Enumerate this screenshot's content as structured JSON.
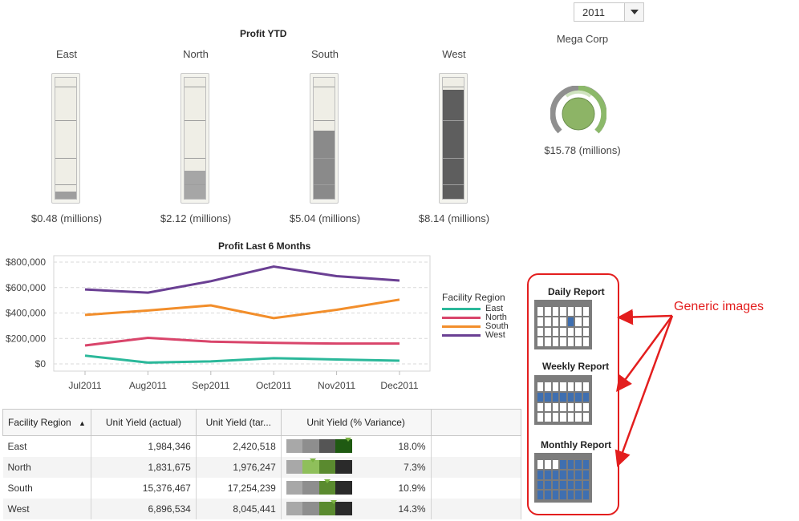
{
  "filter": {
    "year": "2011"
  },
  "profit_ytd": {
    "title": "Profit YTD",
    "regions": [
      {
        "name": "East",
        "value_label": "$0.48 (millions)",
        "fill_pct": 6,
        "color": "#9e9e9e"
      },
      {
        "name": "North",
        "value_label": "$2.12 (millions)",
        "fill_pct": 23,
        "color": "#a6a6a6"
      },
      {
        "name": "South",
        "value_label": "$5.04 (millions)",
        "fill_pct": 56,
        "color": "#8a8a8a"
      },
      {
        "name": "West",
        "value_label": "$8.14 (millions)",
        "fill_pct": 90,
        "color": "#5e5e5e"
      }
    ]
  },
  "mega_corp": {
    "title": "Mega Corp",
    "value_label": "$15.78 (millions)"
  },
  "chart_data": {
    "type": "line",
    "title": "Profit Last 6 Months",
    "categories": [
      "Jul2011",
      "Aug2011",
      "Sep2011",
      "Oct2011",
      "Nov2011",
      "Dec2011"
    ],
    "y_ticks": [
      "$800,000",
      "$600,000",
      "$400,000",
      "$200,000",
      "$0"
    ],
    "ylim": [
      0,
      800000
    ],
    "grid": true,
    "legend_title": "Facility Region",
    "legend_position": "right",
    "series": [
      {
        "name": "East",
        "color": "#2bb89a",
        "values": [
          65000,
          10000,
          20000,
          45000,
          35000,
          25000
        ]
      },
      {
        "name": "North",
        "color": "#d9456b",
        "values": [
          145000,
          205000,
          175000,
          165000,
          160000,
          160000
        ]
      },
      {
        "name": "South",
        "color": "#f28e2b",
        "values": [
          385000,
          420000,
          460000,
          360000,
          425000,
          505000
        ]
      },
      {
        "name": "West",
        "color": "#6a3f93",
        "values": [
          585000,
          560000,
          650000,
          765000,
          690000,
          655000
        ]
      }
    ]
  },
  "table": {
    "columns": [
      "Facility Region",
      "Unit Yield (actual)",
      "Unit Yield (tar...",
      "Unit Yield (% Variance)"
    ],
    "rows": [
      {
        "region": "East",
        "actual": "1,984,346",
        "target": "2,420,518",
        "variance": "18.0%"
      },
      {
        "region": "North",
        "actual": "1,831,675",
        "target": "1,976,247",
        "variance": "7.3%"
      },
      {
        "region": "South",
        "actual": "15,376,467",
        "target": "17,254,239",
        "variance": "10.9%"
      },
      {
        "region": "West",
        "actual": "6,896,534",
        "target": "8,045,441",
        "variance": "14.3%"
      }
    ]
  },
  "reports": {
    "daily": "Daily Report",
    "weekly": "Weekly Report",
    "monthly": "Monthly Report"
  },
  "annotation": "Generic images"
}
